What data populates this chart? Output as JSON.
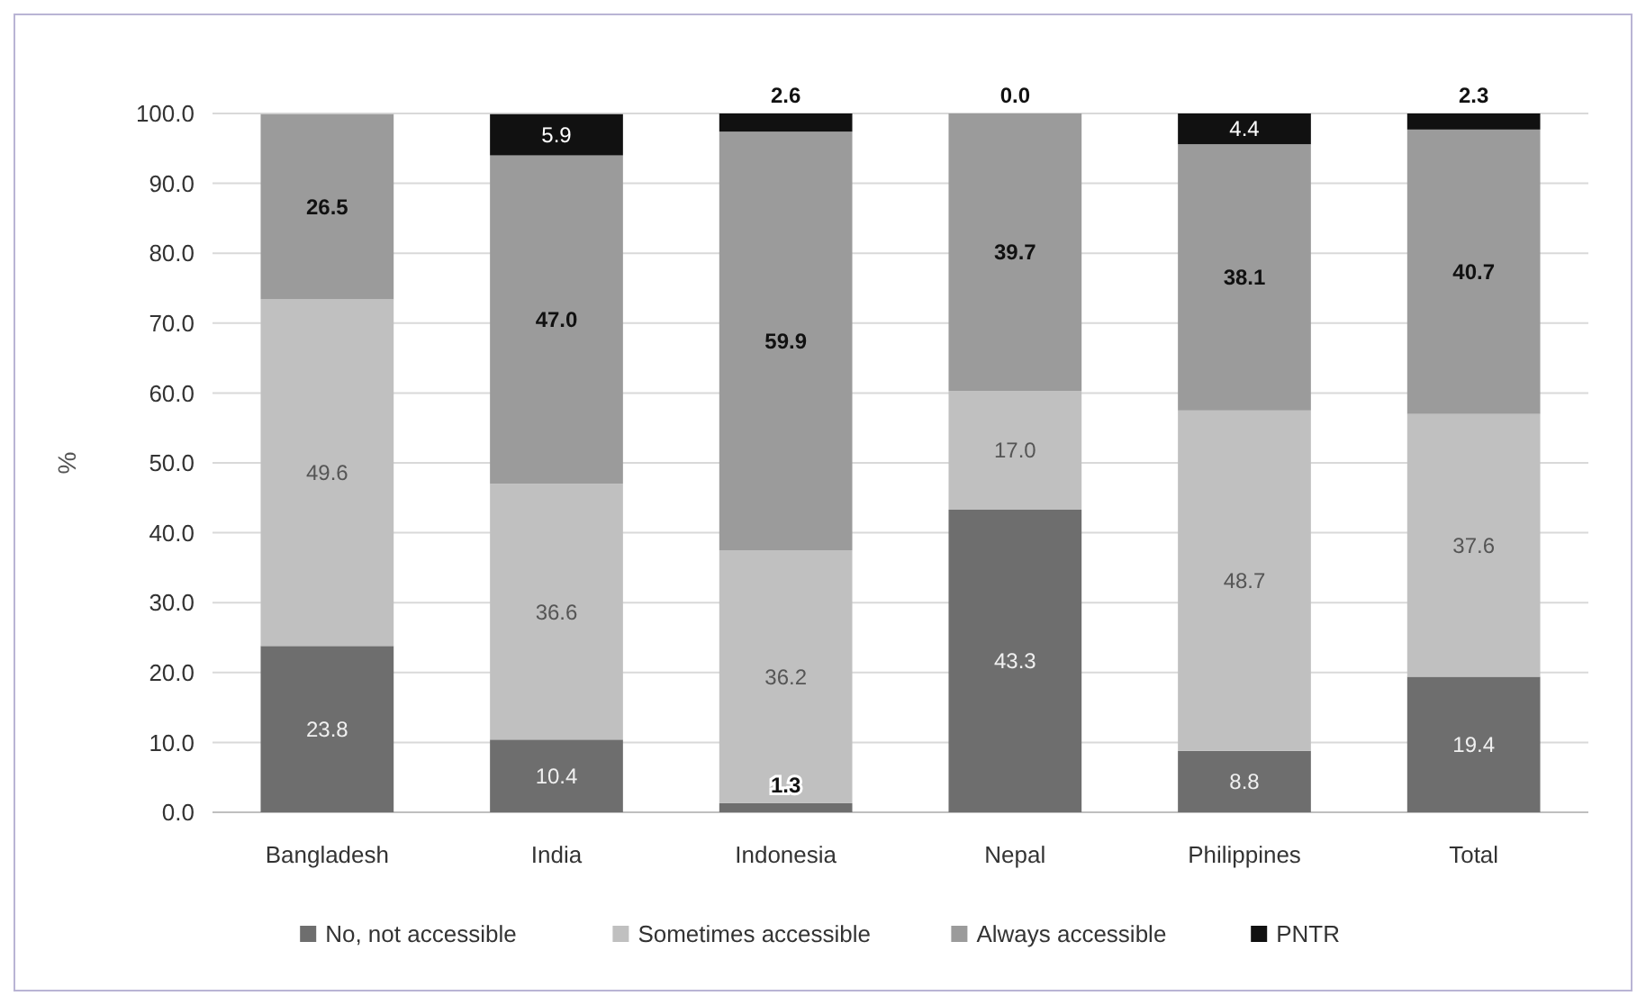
{
  "chart_data": {
    "type": "bar",
    "stacked": true,
    "ylabel": "%",
    "categories": [
      "Bangladesh",
      "India",
      "Indonesia",
      "Nepal",
      "Philippines",
      "Total"
    ],
    "ylim": [
      0,
      100
    ],
    "yticks": [
      {
        "value": 0,
        "label": "0.0"
      },
      {
        "value": 10,
        "label": "10.0"
      },
      {
        "value": 20,
        "label": "20.0"
      },
      {
        "value": 30,
        "label": "30.0"
      },
      {
        "value": 40,
        "label": "40.0"
      },
      {
        "value": 50,
        "label": "50.0"
      },
      {
        "value": 60,
        "label": "60.0"
      },
      {
        "value": 70,
        "label": "70.0"
      },
      {
        "value": 80,
        "label": "80.0"
      },
      {
        "value": 90,
        "label": "90.0"
      },
      {
        "value": 100,
        "label": "100.0"
      }
    ],
    "grid": "y",
    "legend": "bottom",
    "series": [
      {
        "name": "No, not accessible",
        "color": "#6e6e6e",
        "values": [
          23.8,
          10.4,
          1.3,
          43.3,
          8.8,
          19.4
        ],
        "value_labels": [
          "23.8",
          "10.4",
          "1.3",
          "43.3",
          "8.8",
          "19.4"
        ]
      },
      {
        "name": "Sometimes accessible",
        "color": "#c0c0c0",
        "values": [
          49.6,
          36.6,
          36.2,
          17.0,
          48.7,
          37.6
        ],
        "value_labels": [
          "49.6",
          "36.6",
          "36.2",
          "17.0",
          "48.7",
          "37.6"
        ]
      },
      {
        "name": "Always accessible",
        "color": "#9b9b9b",
        "values": [
          26.5,
          47.0,
          59.9,
          39.7,
          38.1,
          40.7
        ],
        "value_labels": [
          "26.5",
          "47.0",
          "59.9",
          "39.7",
          "38.1",
          "40.7"
        ]
      },
      {
        "name": "PNTR",
        "color": "#111111",
        "values": [
          null,
          5.9,
          2.6,
          0.0,
          4.4,
          2.3
        ],
        "value_labels": [
          null,
          "5.9",
          "2.6",
          "0.0",
          "4.4",
          "2.3"
        ]
      }
    ]
  }
}
